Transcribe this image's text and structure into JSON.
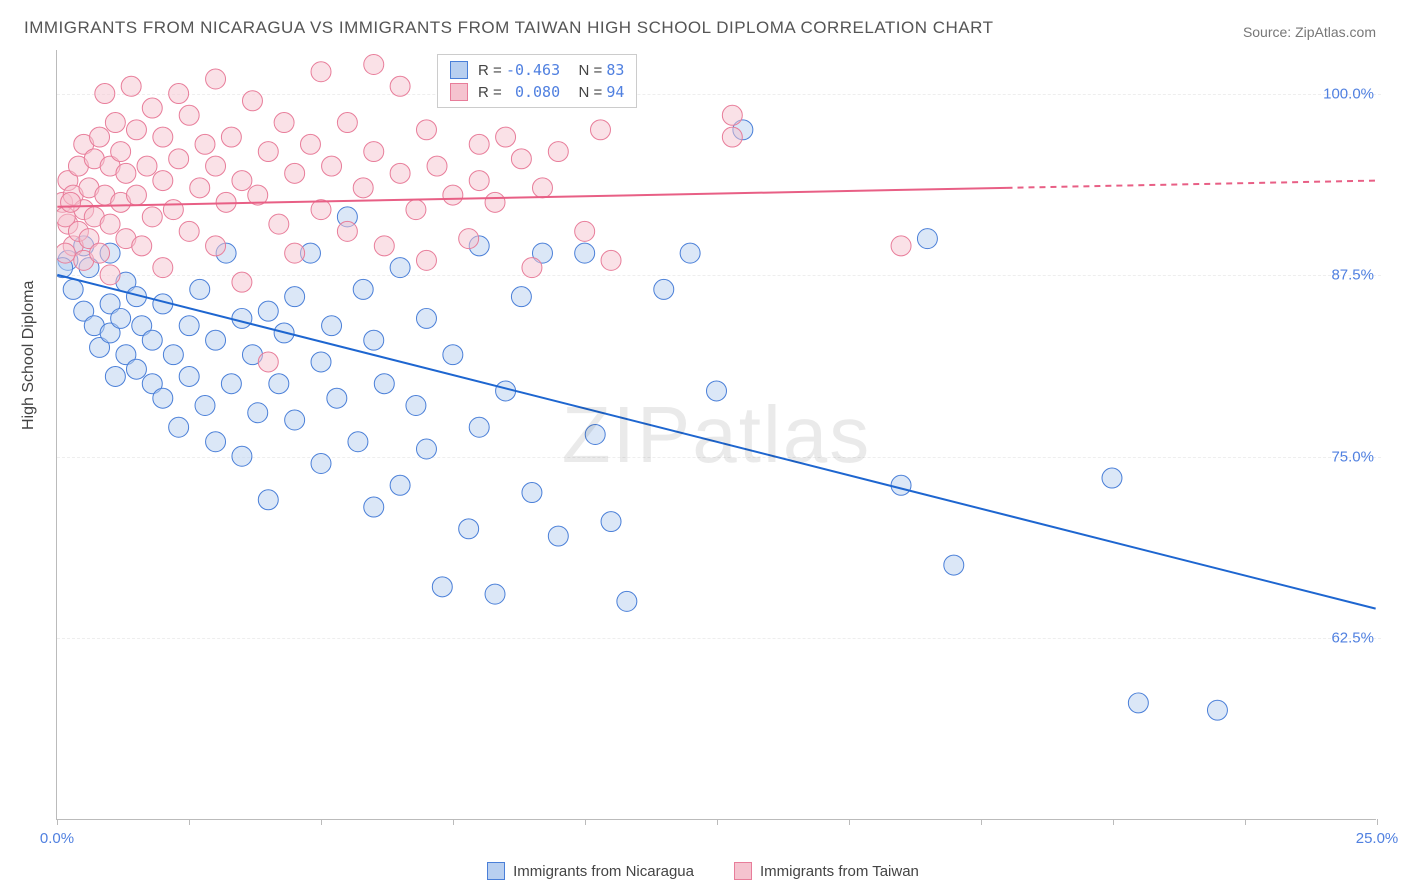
{
  "title": "IMMIGRANTS FROM NICARAGUA VS IMMIGRANTS FROM TAIWAN HIGH SCHOOL DIPLOMA CORRELATION CHART",
  "source_prefix": "Source: ",
  "source_name": "ZipAtlas.com",
  "yaxis_label": "High School Diploma",
  "watermark_a": "ZIP",
  "watermark_b": "atlas",
  "chart": {
    "xlim": [
      0,
      25
    ],
    "ylim": [
      50,
      103
    ],
    "yticks": [
      62.5,
      75.0,
      87.5,
      100.0
    ],
    "ytick_labels": [
      "62.5%",
      "75.0%",
      "87.5%",
      "100.0%"
    ],
    "xticks": [
      0,
      2.5,
      5,
      7.5,
      10,
      12.5,
      15,
      17.5,
      20,
      22.5,
      25
    ],
    "xtick_labels": {
      "0": "0.0%",
      "25": "25.0%"
    },
    "background_color": "#ffffff",
    "grid_color": "#eeeeee",
    "marker_radius": 10,
    "marker_opacity": 0.5,
    "line_width": 2
  },
  "series": [
    {
      "key": "nicaragua",
      "label": "Immigrants from Nicaragua",
      "color_fill": "#b8cff0",
      "color_stroke": "#4a7fd8",
      "color_line": "#1e66d0",
      "R": "-0.463",
      "N": "83",
      "trend": {
        "x0": 0,
        "y0": 87.5,
        "x1": 25,
        "y1": 64.5
      },
      "points": [
        [
          0.2,
          88.5
        ],
        [
          0.3,
          86.5
        ],
        [
          0.5,
          85.0
        ],
        [
          0.5,
          89.5
        ],
        [
          0.6,
          88.0
        ],
        [
          0.7,
          84.0
        ],
        [
          0.8,
          82.5
        ],
        [
          1.0,
          85.5
        ],
        [
          1.0,
          83.5
        ],
        [
          1.0,
          89.0
        ],
        [
          1.1,
          80.5
        ],
        [
          1.2,
          84.5
        ],
        [
          1.3,
          87.0
        ],
        [
          1.3,
          82.0
        ],
        [
          1.5,
          86.0
        ],
        [
          1.5,
          81.0
        ],
        [
          1.6,
          84.0
        ],
        [
          1.8,
          80.0
        ],
        [
          1.8,
          83.0
        ],
        [
          2.0,
          85.5
        ],
        [
          2.0,
          79.0
        ],
        [
          2.2,
          82.0
        ],
        [
          2.3,
          77.0
        ],
        [
          2.5,
          84.0
        ],
        [
          2.5,
          80.5
        ],
        [
          2.7,
          86.5
        ],
        [
          2.8,
          78.5
        ],
        [
          3.0,
          83.0
        ],
        [
          3.0,
          76.0
        ],
        [
          3.2,
          89.0
        ],
        [
          3.3,
          80.0
        ],
        [
          3.5,
          84.5
        ],
        [
          3.5,
          75.0
        ],
        [
          3.7,
          82.0
        ],
        [
          3.8,
          78.0
        ],
        [
          4.0,
          72.0
        ],
        [
          4.0,
          85.0
        ],
        [
          4.2,
          80.0
        ],
        [
          4.3,
          83.5
        ],
        [
          4.5,
          86.0
        ],
        [
          4.5,
          77.5
        ],
        [
          4.8,
          89.0
        ],
        [
          5.0,
          81.5
        ],
        [
          5.0,
          74.5
        ],
        [
          5.2,
          84.0
        ],
        [
          5.3,
          79.0
        ],
        [
          5.5,
          91.5
        ],
        [
          5.7,
          76.0
        ],
        [
          5.8,
          86.5
        ],
        [
          6.0,
          83.0
        ],
        [
          6.0,
          71.5
        ],
        [
          6.2,
          80.0
        ],
        [
          6.5,
          73.0
        ],
        [
          6.5,
          88.0
        ],
        [
          6.8,
          78.5
        ],
        [
          7.0,
          84.5
        ],
        [
          7.0,
          75.5
        ],
        [
          7.3,
          66.0
        ],
        [
          7.5,
          82.0
        ],
        [
          7.8,
          70.0
        ],
        [
          8.0,
          89.5
        ],
        [
          8.0,
          77.0
        ],
        [
          8.3,
          65.5
        ],
        [
          8.5,
          79.5
        ],
        [
          8.8,
          86.0
        ],
        [
          9.0,
          72.5
        ],
        [
          9.2,
          89.0
        ],
        [
          9.5,
          69.5
        ],
        [
          10.0,
          89.0
        ],
        [
          10.2,
          76.5
        ],
        [
          10.5,
          70.5
        ],
        [
          10.8,
          65.0
        ],
        [
          11.5,
          86.5
        ],
        [
          12.0,
          89.0
        ],
        [
          12.5,
          79.5
        ],
        [
          13.0,
          97.5
        ],
        [
          16.0,
          73.0
        ],
        [
          16.5,
          90.0
        ],
        [
          17.0,
          67.5
        ],
        [
          20.0,
          73.5
        ],
        [
          20.5,
          58.0
        ],
        [
          22.0,
          57.5
        ],
        [
          0.1,
          88.0
        ]
      ]
    },
    {
      "key": "taiwan",
      "label": "Immigrants from Taiwan",
      "color_fill": "#f5c3cf",
      "color_stroke": "#e87d9a",
      "color_line": "#e85f85",
      "R": " 0.080",
      "N": "94",
      "trend": {
        "x0": 0,
        "y0": 92.2,
        "x1": 18,
        "y1": 93.5
      },
      "trend_dash": {
        "x0": 18,
        "y0": 93.5,
        "x1": 25,
        "y1": 94.0
      },
      "points": [
        [
          0.1,
          92.5
        ],
        [
          0.2,
          91.0
        ],
        [
          0.2,
          94.0
        ],
        [
          0.3,
          89.5
        ],
        [
          0.3,
          93.0
        ],
        [
          0.4,
          95.0
        ],
        [
          0.4,
          90.5
        ],
        [
          0.5,
          92.0
        ],
        [
          0.5,
          96.5
        ],
        [
          0.5,
          88.5
        ],
        [
          0.6,
          93.5
        ],
        [
          0.6,
          90.0
        ],
        [
          0.7,
          95.5
        ],
        [
          0.7,
          91.5
        ],
        [
          0.8,
          97.0
        ],
        [
          0.8,
          89.0
        ],
        [
          0.9,
          93.0
        ],
        [
          0.9,
          100.0
        ],
        [
          1.0,
          91.0
        ],
        [
          1.0,
          95.0
        ],
        [
          1.0,
          87.5
        ],
        [
          1.1,
          98.0
        ],
        [
          1.2,
          92.5
        ],
        [
          1.2,
          96.0
        ],
        [
          1.3,
          90.0
        ],
        [
          1.3,
          94.5
        ],
        [
          1.4,
          100.5
        ],
        [
          1.5,
          93.0
        ],
        [
          1.5,
          97.5
        ],
        [
          1.6,
          89.5
        ],
        [
          1.7,
          95.0
        ],
        [
          1.8,
          91.5
        ],
        [
          1.8,
          99.0
        ],
        [
          2.0,
          94.0
        ],
        [
          2.0,
          88.0
        ],
        [
          2.0,
          97.0
        ],
        [
          2.2,
          92.0
        ],
        [
          2.3,
          100.0
        ],
        [
          2.3,
          95.5
        ],
        [
          2.5,
          90.5
        ],
        [
          2.5,
          98.5
        ],
        [
          2.7,
          93.5
        ],
        [
          2.8,
          96.5
        ],
        [
          3.0,
          89.5
        ],
        [
          3.0,
          95.0
        ],
        [
          3.0,
          101.0
        ],
        [
          3.2,
          92.5
        ],
        [
          3.3,
          97.0
        ],
        [
          3.5,
          94.0
        ],
        [
          3.5,
          87.0
        ],
        [
          3.7,
          99.5
        ],
        [
          3.8,
          93.0
        ],
        [
          4.0,
          96.0
        ],
        [
          4.0,
          81.5
        ],
        [
          4.2,
          91.0
        ],
        [
          4.3,
          98.0
        ],
        [
          4.5,
          94.5
        ],
        [
          4.5,
          89.0
        ],
        [
          4.8,
          96.5
        ],
        [
          5.0,
          92.0
        ],
        [
          5.0,
          101.5
        ],
        [
          5.2,
          95.0
        ],
        [
          5.5,
          90.5
        ],
        [
          5.5,
          98.0
        ],
        [
          5.8,
          93.5
        ],
        [
          6.0,
          96.0
        ],
        [
          6.0,
          102.0
        ],
        [
          6.2,
          89.5
        ],
        [
          6.5,
          94.5
        ],
        [
          6.5,
          100.5
        ],
        [
          6.8,
          92.0
        ],
        [
          7.0,
          97.5
        ],
        [
          7.0,
          88.5
        ],
        [
          7.2,
          95.0
        ],
        [
          7.5,
          93.0
        ],
        [
          7.5,
          101.0
        ],
        [
          7.8,
          90.0
        ],
        [
          8.0,
          96.5
        ],
        [
          8.0,
          94.0
        ],
        [
          8.3,
          92.5
        ],
        [
          8.5,
          97.0
        ],
        [
          8.8,
          95.5
        ],
        [
          9.0,
          88.0
        ],
        [
          9.2,
          93.5
        ],
        [
          9.5,
          96.0
        ],
        [
          10.0,
          90.5
        ],
        [
          10.3,
          97.5
        ],
        [
          10.5,
          88.5
        ],
        [
          12.8,
          97.0
        ],
        [
          12.8,
          98.5
        ],
        [
          16.0,
          89.5
        ],
        [
          0.15,
          91.5
        ],
        [
          0.15,
          89.0
        ],
        [
          0.25,
          92.5
        ]
      ]
    }
  ],
  "legend_top": {
    "r_label": "R =",
    "n_label": "N ="
  }
}
